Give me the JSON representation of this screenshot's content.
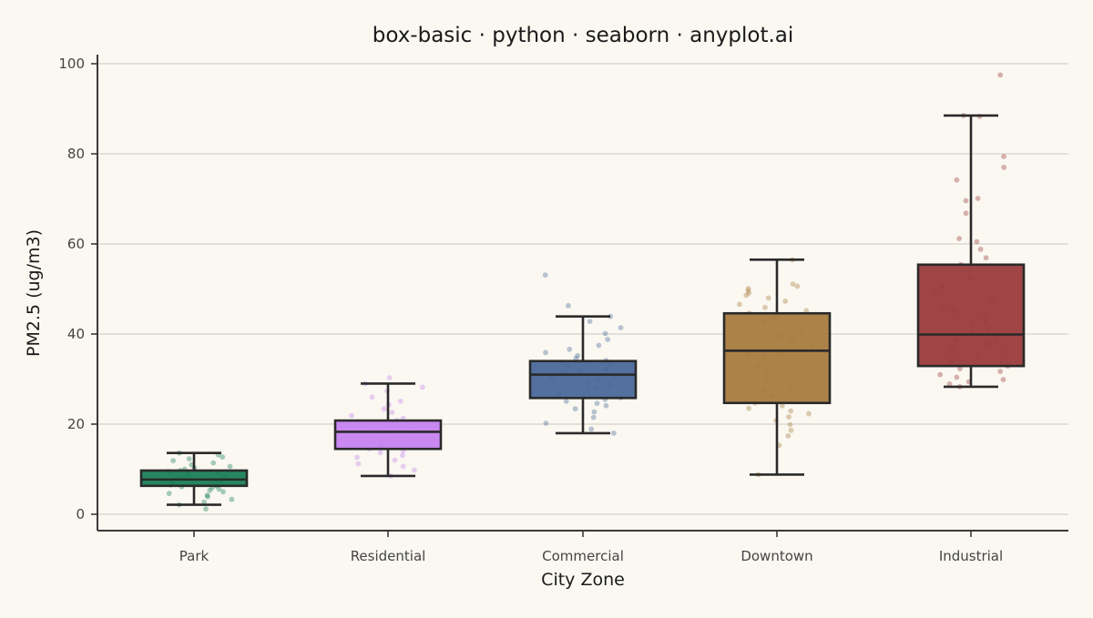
{
  "chart_data": {
    "type": "box",
    "title": "box-basic · python · seaborn · anyplot.ai",
    "xlabel": "City Zone",
    "ylabel": "PM2.5 (ug/m3)",
    "ylim": [
      -3.5,
      102.5
    ],
    "yticks": [
      0,
      20,
      40,
      60,
      80,
      100
    ],
    "grid": "horizontal",
    "categories": [
      "Park",
      "Residential",
      "Commercial",
      "Downtown",
      "Industrial"
    ],
    "colors": [
      "#1A7F5A",
      "#C683F0",
      "#4A6899",
      "#A87B3E",
      "#9A3B3B"
    ],
    "boxes": [
      {
        "name": "Park",
        "whisker_low": 2.1,
        "q1": 6.3,
        "median": 7.7,
        "q3": 9.7,
        "whisker_high": 13.6
      },
      {
        "name": "Residential",
        "whisker_low": 8.5,
        "q1": 14.5,
        "median": 18.3,
        "q3": 20.8,
        "whisker_high": 29.0
      },
      {
        "name": "Commercial",
        "whisker_low": 18.0,
        "q1": 25.8,
        "median": 31.0,
        "q3": 34.0,
        "whisker_high": 43.9
      },
      {
        "name": "Downtown",
        "whisker_low": 8.8,
        "q1": 24.7,
        "median": 36.3,
        "q3": 44.6,
        "whisker_high": 56.5
      },
      {
        "name": "Industrial",
        "whisker_low": 28.3,
        "q1": 32.9,
        "median": 39.9,
        "q3": 55.4,
        "whisker_high": 88.5
      }
    ],
    "points": [
      [
        1.2,
        2.1,
        2.7,
        3.3,
        3.9,
        4.2,
        4.6,
        5.0,
        5.3,
        5.6,
        5.9,
        6.1,
        6.3,
        6.5,
        6.6,
        6.8,
        7.0,
        7.1,
        7.3,
        7.4,
        7.6,
        7.7,
        7.8,
        7.9,
        8.1,
        8.2,
        8.4,
        8.5,
        8.7,
        8.9,
        9.1,
        9.3,
        9.5,
        9.7,
        10.0,
        10.3,
        10.6,
        11.0,
        11.4,
        11.9,
        12.3,
        12.7,
        13.2,
        13.6
      ],
      [
        8.5,
        9.8,
        10.6,
        11.2,
        12.0,
        12.6,
        13.1,
        13.7,
        14.1,
        14.5,
        14.9,
        15.3,
        15.7,
        16.0,
        16.4,
        16.8,
        17.1,
        17.4,
        17.7,
        18.0,
        18.3,
        18.6,
        18.9,
        19.2,
        19.5,
        19.8,
        20.1,
        20.4,
        20.8,
        21.3,
        21.9,
        22.6,
        23.4,
        24.3,
        25.1,
        26.0,
        27.4,
        28.2,
        29.0,
        30.3
      ],
      [
        18.0,
        18.9,
        20.2,
        21.5,
        22.7,
        23.4,
        24.1,
        24.6,
        25.1,
        25.5,
        25.9,
        26.3,
        26.8,
        27.4,
        28.0,
        28.6,
        29.2,
        29.8,
        30.3,
        30.7,
        31.0,
        31.4,
        31.8,
        32.3,
        32.8,
        33.3,
        33.7,
        34.1,
        34.6,
        35.2,
        35.9,
        36.6,
        37.5,
        38.8,
        40.1,
        41.4,
        42.8,
        43.9,
        46.3,
        53.1
      ],
      [
        8.8,
        15.3,
        17.4,
        18.6,
        19.9,
        20.8,
        21.6,
        22.3,
        22.9,
        23.5,
        24.1,
        24.7,
        25.4,
        26.3,
        27.4,
        28.7,
        30.1,
        31.6,
        33.0,
        34.4,
        35.5,
        36.3,
        37.2,
        38.3,
        39.4,
        40.5,
        41.6,
        42.6,
        43.5,
        44.1,
        44.6,
        45.2,
        45.9,
        46.6,
        47.3,
        48.0,
        48.6,
        49.1,
        49.6,
        50.1,
        50.6,
        51.1,
        56.5
      ],
      [
        28.3,
        28.9,
        29.4,
        29.9,
        30.4,
        31.0,
        31.7,
        32.3,
        32.9,
        33.6,
        34.4,
        35.2,
        36.0,
        36.9,
        37.8,
        38.7,
        39.4,
        39.9,
        40.5,
        41.2,
        42.0,
        42.9,
        43.9,
        45.0,
        46.2,
        47.5,
        49.0,
        50.7,
        52.4,
        54.2,
        55.4,
        56.9,
        58.8,
        60.5,
        61.2,
        66.8,
        69.6,
        70.1,
        74.2,
        77.0,
        79.4,
        88.3,
        88.5,
        97.5
      ]
    ]
  }
}
